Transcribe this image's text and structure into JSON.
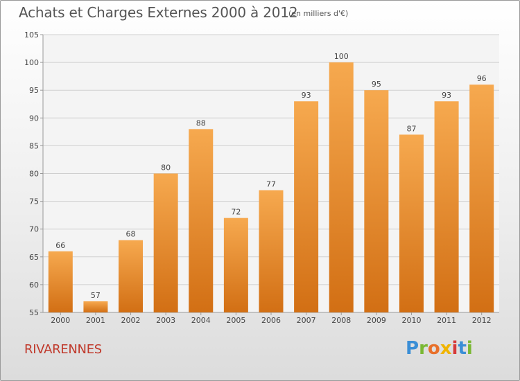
{
  "title": "Achats et Charges Externes 2000 à 2012",
  "subtitle": "(en milliers d'€)",
  "place": "RIVARENNES",
  "brand": {
    "letters": [
      "P",
      "r",
      "o",
      "x",
      "i",
      "t",
      "i"
    ],
    "colors": [
      "#3a8ed6",
      "#7ab833",
      "#e8702a",
      "#f0b400",
      "#d63a3a",
      "#3a8ed6",
      "#7ab833"
    ]
  },
  "colors": {
    "bar_top": "#f6a94f",
    "bar_bottom": "#d26f14",
    "grid": "#cfcfcf",
    "axis": "#999999"
  },
  "chart_data": {
    "type": "bar",
    "categories": [
      "2000",
      "2001",
      "2002",
      "2003",
      "2004",
      "2005",
      "2006",
      "2007",
      "2008",
      "2009",
      "2010",
      "2011",
      "2012"
    ],
    "values": [
      66,
      57,
      68,
      80,
      88,
      72,
      77,
      93,
      100,
      95,
      87,
      93,
      96
    ],
    "ylim": [
      55,
      105
    ],
    "yticks": [
      55,
      60,
      65,
      70,
      75,
      80,
      85,
      90,
      95,
      100,
      105
    ],
    "grid": true,
    "data_labels": true
  }
}
